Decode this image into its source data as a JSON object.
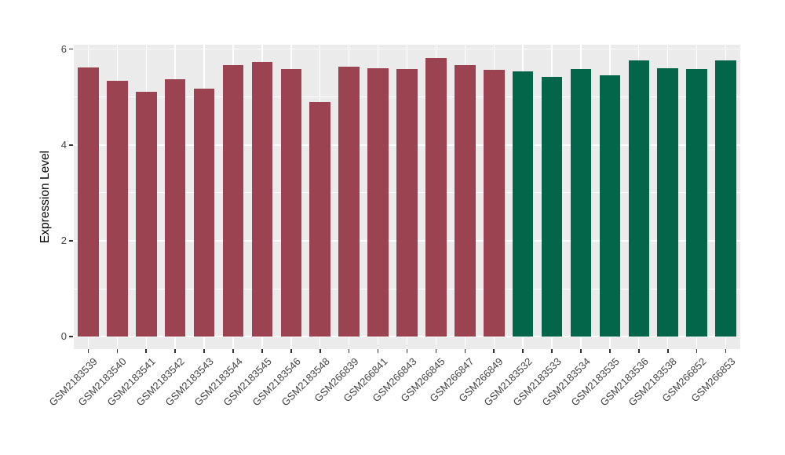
{
  "chart_data": {
    "type": "bar",
    "title": "",
    "xlabel": "",
    "ylabel": "Expression Level",
    "categories": [
      "GSM2183539",
      "GSM2183540",
      "GSM2183541",
      "GSM2183542",
      "GSM2183543",
      "GSM2183544",
      "GSM2183545",
      "GSM2183546",
      "GSM2183548",
      "GSM266839",
      "GSM266841",
      "GSM266843",
      "GSM266845",
      "GSM266847",
      "GSM266849",
      "GSM2183532",
      "GSM2183533",
      "GSM2183534",
      "GSM2183535",
      "GSM2183536",
      "GSM2183538",
      "GSM266852",
      "GSM266853"
    ],
    "values": [
      5.62,
      5.34,
      5.11,
      5.37,
      5.17,
      5.66,
      5.73,
      5.59,
      4.9,
      5.64,
      5.6,
      5.58,
      5.81,
      5.66,
      5.57,
      5.54,
      5.42,
      5.59,
      5.45,
      5.77,
      5.6,
      5.58,
      5.77
    ],
    "groups": [
      "group1",
      "group1",
      "group1",
      "group1",
      "group1",
      "group1",
      "group1",
      "group1",
      "group1",
      "group1",
      "group1",
      "group1",
      "group1",
      "group1",
      "group1",
      "group2",
      "group2",
      "group2",
      "group2",
      "group2",
      "group2",
      "group2",
      "group2"
    ],
    "group_colors": {
      "group1": "#9C4351",
      "group2": "#03664A"
    },
    "ylim": [
      0,
      6.1
    ],
    "yticks_major": [
      0,
      2,
      4,
      6
    ],
    "ytick_labels": [
      "0",
      "2",
      "4",
      "6"
    ],
    "yticks_minor": [
      1,
      3,
      5
    ],
    "x_tick_label_rotation": 45,
    "bar_width_fraction": 0.72,
    "legend": "none",
    "grid": "on",
    "panel_bg_color": "#EBEBEB",
    "grid_color": "#FFFFFF",
    "axis_text_color": "#424242",
    "tick_mark_color": "#333333"
  }
}
